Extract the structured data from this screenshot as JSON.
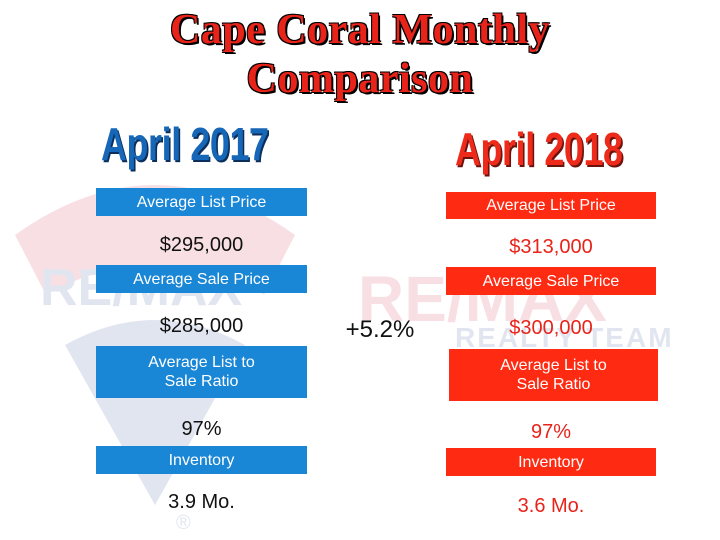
{
  "title": {
    "line1": "Cape Coral Monthly",
    "line2": "Comparison"
  },
  "left": {
    "heading": "April 2017",
    "rows": [
      {
        "label": "Average List Price",
        "value": "$295,000"
      },
      {
        "label": "Average Sale Price",
        "value": "$285,000"
      },
      {
        "label": "Average List to Sale Ratio",
        "value": "97%"
      },
      {
        "label": "Inventory",
        "value": "3.9 Mo."
      }
    ]
  },
  "right": {
    "heading": "April 2018",
    "rows": [
      {
        "label": "Average List Price",
        "value": "$313,000"
      },
      {
        "label": "Average Sale Price",
        "value": "$300,000"
      },
      {
        "label": "Average List to Sale Ratio",
        "value": "97%"
      },
      {
        "label": "Inventory",
        "value": "3.6 Mo."
      }
    ]
  },
  "change": "+5.2%",
  "watermark": {
    "brand": "RE/MAX",
    "team": "REALTY TEAM",
    "mark": "®"
  },
  "colors": {
    "title_red": "#e8231a",
    "blue_label": "#1a86d6",
    "red_label": "#ff2a12",
    "heading_blue": "#1667b8"
  }
}
